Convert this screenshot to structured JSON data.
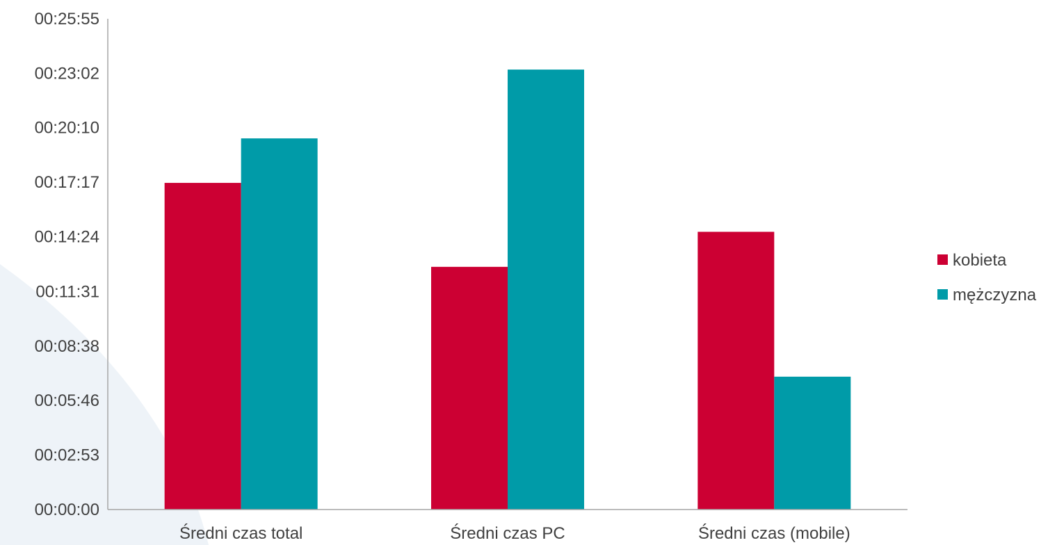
{
  "colors": {
    "background_swoosh": "#eef3f8",
    "axis": "#a6a6a6"
  },
  "chart_data": {
    "type": "bar",
    "title": "",
    "xlabel": "",
    "ylabel": "",
    "categories": [
      "Średni czas total",
      "Średni czas PC",
      "Średni czas (mobile)"
    ],
    "y_unit": "seconds",
    "ylim": [
      0,
      1555
    ],
    "y_ticks": [
      0,
      173,
      346,
      518,
      691,
      864,
      1037,
      1210,
      1382,
      1555
    ],
    "y_tick_labels": [
      "00:00:00",
      "00:02:53",
      "00:05:46",
      "00:08:38",
      "00:11:31",
      "00:14:24",
      "00:17:17",
      "00:20:10",
      "00:23:02",
      "00:25:55"
    ],
    "series": [
      {
        "name": "kobieta",
        "color": "#cc0033",
        "values": [
          1035,
          769,
          880
        ]
      },
      {
        "name": "mężczyzna",
        "color": "#009ba8",
        "values": [
          1176,
          1394,
          421
        ]
      }
    ],
    "grid": false,
    "legend_position": "right"
  }
}
